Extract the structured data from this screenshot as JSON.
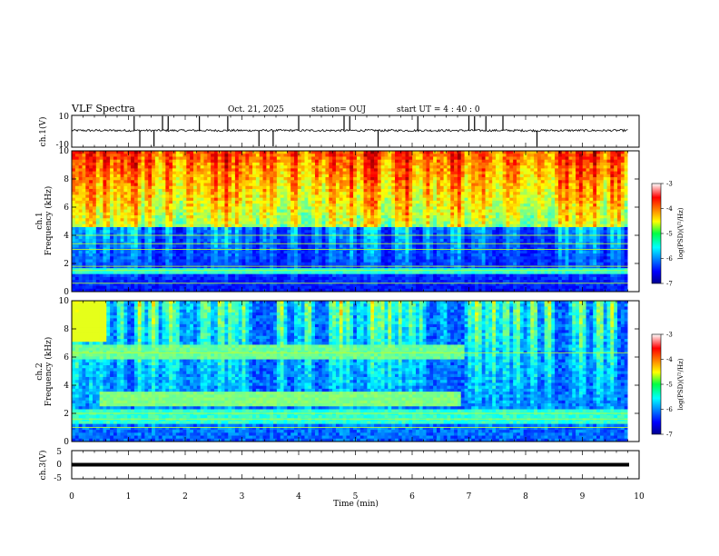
{
  "header": {
    "title": "VLF Spectra",
    "date": "Oct. 21, 2025",
    "station": "station= OUJ",
    "start": "start UT =  4 : 40 : 0"
  },
  "chart_data": [
    {
      "type": "line",
      "panel": "ch1-waveform",
      "ylabel": "ch.1(V)",
      "ylim": [
        -10,
        10
      ],
      "yticks": [
        "10",
        "-10"
      ],
      "xlim": [
        0,
        10
      ],
      "baseline_V": 0.5,
      "spike_times_min": [
        1.1,
        1.2,
        1.45,
        1.6,
        1.7,
        2.25,
        2.75,
        3.3,
        3.55,
        4.0,
        4.8,
        4.9,
        5.4,
        6.1,
        7.0,
        7.1,
        7.3,
        7.6,
        8.2
      ]
    },
    {
      "type": "heatmap",
      "panel": "ch1-spectrogram",
      "ylabel": "ch.1\nFrequency (kHz)",
      "ylim": [
        0,
        10
      ],
      "yticks": [
        "0",
        "2",
        "4",
        "6",
        "8",
        "10"
      ],
      "xlim": [
        0,
        9.8
      ],
      "colorbar": {
        "label": "log(PSD)(V²/Hz)",
        "ticks": [
          "-3",
          "-4",
          "-5",
          "-6",
          "-7"
        ],
        "range": [
          -7,
          -3
        ]
      },
      "hiss_upper_band_kHz": [
        4.5,
        10
      ],
      "lines_kHz": [
        0.6,
        1.5,
        1.8,
        3.0,
        3.4,
        4.0
      ]
    },
    {
      "type": "heatmap",
      "panel": "ch2-spectrogram",
      "ylabel": "ch.2\nFrequency (kHz)",
      "ylim": [
        0,
        10
      ],
      "yticks": [
        "0",
        "2",
        "4",
        "6",
        "8",
        "10"
      ],
      "xlim": [
        0,
        9.8
      ],
      "colorbar": {
        "label": "log(PSD)(V²/Hz)",
        "ticks": [
          "-3",
          "-4",
          "-5",
          "-6",
          "-7"
        ],
        "range": [
          -7,
          -3
        ]
      },
      "band_kHz": [
        2.6,
        3.6
      ],
      "band_time_min": [
        0.45,
        6.85
      ],
      "lines_kHz": [
        1.0,
        1.6,
        2.0,
        6.3
      ]
    },
    {
      "type": "line",
      "panel": "ch3-waveform",
      "ylabel": "ch.3(V)",
      "ylim": [
        -5,
        5
      ],
      "yticks": [
        "5",
        "0",
        "-5"
      ],
      "xlim": [
        0,
        10
      ],
      "constant_V": 0
    }
  ],
  "x_axis": {
    "label": "Time (min)",
    "ticks": [
      "0",
      "1",
      "2",
      "3",
      "4",
      "5",
      "6",
      "7",
      "8",
      "9",
      "10"
    ]
  }
}
